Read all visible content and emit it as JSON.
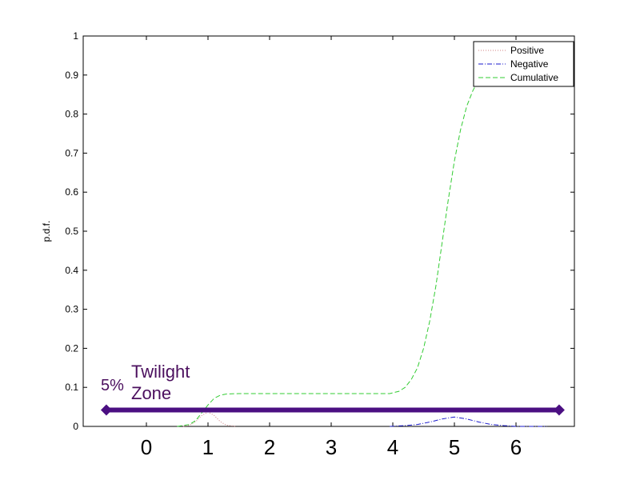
{
  "chart_data": {
    "type": "line",
    "ylabel": "p.d.f.",
    "ylim": [
      0,
      1
    ],
    "yticks": [
      "0",
      "0.1",
      "0.2",
      "0.3",
      "0.4",
      "0.5",
      "0.6",
      "0.7",
      "0.8",
      "0.9",
      "1"
    ],
    "xticks": [
      "0",
      "1",
      "2",
      "3",
      "4",
      "5",
      "6"
    ],
    "legend": {
      "placement": "top-right"
    },
    "series": [
      {
        "name": "Positive",
        "color": "#d08080",
        "style": "dotted",
        "x": [
          0.6,
          0.7,
          0.8,
          0.9,
          1.0,
          1.1,
          1.2,
          1.3,
          1.45
        ],
        "y": [
          0.0,
          0.003,
          0.012,
          0.028,
          0.037,
          0.028,
          0.012,
          0.003,
          0.0
        ]
      },
      {
        "name": "Negative",
        "color": "#1a1acc",
        "style": "dashdot",
        "x": [
          3.95,
          4.2,
          4.4,
          4.6,
          4.8,
          5.0,
          5.2,
          5.4,
          5.6,
          5.8,
          6.0,
          6.5
        ],
        "y": [
          0.0,
          0.002,
          0.005,
          0.011,
          0.019,
          0.024,
          0.019,
          0.011,
          0.005,
          0.002,
          0.0,
          0.0
        ]
      },
      {
        "name": "Cumulative",
        "color": "#33cc33",
        "style": "dashed",
        "x": [
          0.5,
          0.7,
          0.8,
          0.9,
          1.0,
          1.1,
          1.2,
          1.3,
          1.5,
          3.0,
          3.95,
          4.1,
          4.2,
          4.3,
          4.4,
          4.5,
          4.6,
          4.7,
          4.8,
          4.9,
          5.0,
          5.1,
          5.2,
          5.3,
          5.4,
          5.5,
          5.6
        ],
        "y": [
          0.0,
          0.005,
          0.015,
          0.035,
          0.055,
          0.072,
          0.08,
          0.083,
          0.084,
          0.084,
          0.084,
          0.09,
          0.1,
          0.12,
          0.15,
          0.2,
          0.27,
          0.36,
          0.47,
          0.58,
          0.68,
          0.76,
          0.82,
          0.86,
          0.89,
          0.91,
          0.92
        ]
      }
    ],
    "annotation": {
      "label_percent": "5%",
      "label_line1": "Twilight",
      "label_line2": "Zone",
      "y": 0.042,
      "x_start": -0.65,
      "x_end": 6.7,
      "color": "#4b0f82"
    }
  }
}
